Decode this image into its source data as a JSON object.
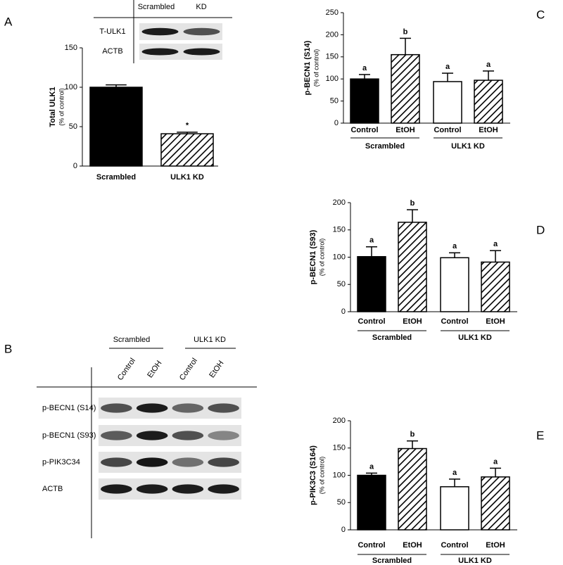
{
  "panels": [
    "A",
    "B",
    "C",
    "D",
    "E"
  ],
  "blots": {
    "a": {
      "columns": [
        "Scrambled",
        "KD"
      ],
      "rows": [
        "T-ULK1",
        "ACTB"
      ]
    },
    "b": {
      "groups": [
        "Scrambled",
        "ULK1 KD"
      ],
      "lanes": [
        "Control",
        "EtOH",
        "Control",
        "EtOH"
      ],
      "rows": [
        "p-BECN1 (S14)",
        "p-BECN1 (S93)",
        "p-PIK3C34",
        "ACTB"
      ]
    }
  },
  "chart_data": [
    {
      "type": "bar",
      "y_label": "Total ULK1",
      "y_sublabel": "(% of control)",
      "categories": [
        "Scrambled",
        "ULK1 KD"
      ],
      "values": [
        100,
        41
      ],
      "errors": [
        3,
        2
      ],
      "bar_labels": [
        null,
        "*"
      ],
      "fills": [
        "solid",
        "hatch"
      ],
      "color": "#000000",
      "ylim": [
        0,
        150
      ],
      "yticks": [
        0,
        50,
        100,
        150
      ]
    },
    {
      "type": "bar",
      "y_label": "p-BECN1 (S14)",
      "y_sublabel": "(% of control)",
      "categories": [
        "Control",
        "EtOH",
        "Control",
        "EtOH"
      ],
      "groups": [
        "Scrambled",
        "ULK1 KD"
      ],
      "values": [
        100,
        155,
        94,
        97
      ],
      "errors": [
        10,
        37,
        19,
        21
      ],
      "bar_labels": [
        "a",
        "b",
        "a",
        "a"
      ],
      "fills": [
        "solid",
        "hatch",
        "open",
        "hatch"
      ],
      "color": "#000000",
      "ylim": [
        0,
        250
      ],
      "yticks": [
        0,
        50,
        100,
        150,
        200,
        250
      ]
    },
    {
      "type": "bar",
      "y_label": "p-BECN1 (S93)",
      "y_sublabel": "(% of control)",
      "categories": [
        "Control",
        "EtOH",
        "Control",
        "EtOH"
      ],
      "groups": [
        "Scrambled",
        "ULK1 KD"
      ],
      "values": [
        101,
        164,
        99,
        91
      ],
      "errors": [
        18,
        23,
        9,
        21
      ],
      "bar_labels": [
        "a",
        "b",
        "a",
        "a"
      ],
      "fills": [
        "solid",
        "hatch",
        "open",
        "hatch"
      ],
      "color": "#000000",
      "ylim": [
        0,
        200
      ],
      "yticks": [
        0,
        50,
        100,
        150,
        200
      ]
    },
    {
      "type": "bar",
      "y_label": "p-PIK3C3 (S164)",
      "y_sublabel": "(% of control)",
      "categories": [
        "Control",
        "EtOH",
        "Control",
        "EtOH"
      ],
      "groups": [
        "Scrambled",
        "ULK1 KD"
      ],
      "values": [
        100,
        149,
        79,
        97
      ],
      "errors": [
        4,
        14,
        14,
        16
      ],
      "bar_labels": [
        "a",
        "b",
        "a",
        "a"
      ],
      "fills": [
        "solid",
        "hatch",
        "open",
        "hatch"
      ],
      "color": "#000000",
      "ylim": [
        0,
        200
      ],
      "yticks": [
        0,
        50,
        100,
        150,
        200
      ]
    }
  ]
}
